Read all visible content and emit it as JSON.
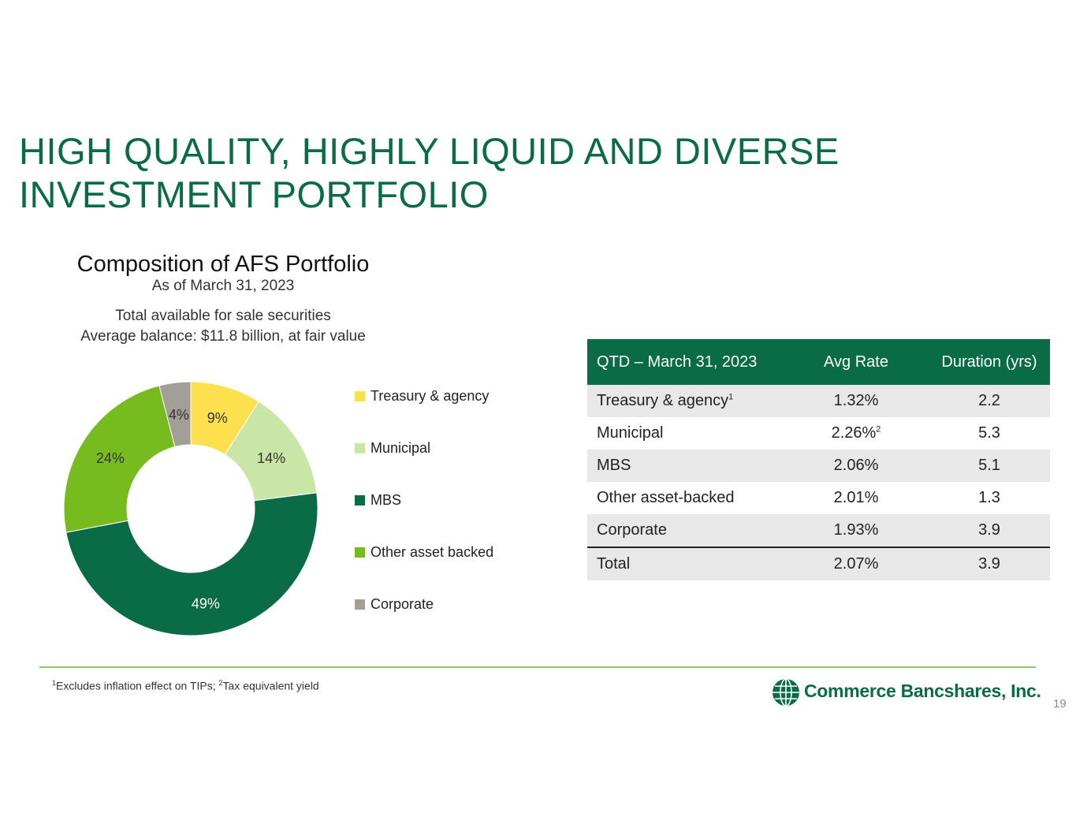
{
  "slide": {
    "title_line1": "HIGH QUALITY, HIGHLY LIQUID AND DIVERSE",
    "title_line2": "INVESTMENT PORTFOLIO",
    "page_number": "19"
  },
  "chart_header": {
    "title": "Composition of AFS Portfolio",
    "subtitle": "As of March 31, 2023",
    "note_line1": "Total available for sale securities",
    "note_line2": "Average balance: $11.8 billion, at fair value"
  },
  "chart_data": {
    "type": "pie",
    "donut": true,
    "categories": [
      "Treasury & agency",
      "Municipal",
      "MBS",
      "Other asset backed",
      "Corporate"
    ],
    "values": [
      9,
      14,
      49,
      24,
      4
    ],
    "labels": [
      "9%",
      "14%",
      "49%",
      "24%",
      "4%"
    ],
    "colors": [
      "#fde04e",
      "#c8e6a6",
      "#0a6b47",
      "#77bc1f",
      "#a39e96"
    ],
    "legend_position": "right"
  },
  "table": {
    "headers": [
      "QTD – March 31, 2023",
      "Avg Rate",
      "Duration (yrs)"
    ],
    "rows": [
      {
        "name": "Treasury & agency",
        "name_sup": "1",
        "rate": "1.32%",
        "rate_sup": "",
        "duration": "2.2"
      },
      {
        "name": "Municipal",
        "name_sup": "",
        "rate": "2.26%",
        "rate_sup": "2",
        "duration": "5.3"
      },
      {
        "name": "MBS",
        "name_sup": "",
        "rate": "2.06%",
        "rate_sup": "",
        "duration": "5.1"
      },
      {
        "name": "Other asset-backed",
        "name_sup": "",
        "rate": "2.01%",
        "rate_sup": "",
        "duration": "1.3"
      },
      {
        "name": "Corporate",
        "name_sup": "",
        "rate": "1.93%",
        "rate_sup": "",
        "duration": "3.9"
      },
      {
        "name": "Total",
        "name_sup": "",
        "rate": "2.07%",
        "rate_sup": "",
        "duration": "3.9"
      }
    ]
  },
  "footnote": {
    "sup1": "1",
    "text1": "Excludes inflation effect on TIPs; ",
    "sup2": "2",
    "text2": "Tax equivalent yield"
  },
  "logo": {
    "icon": "globe-icon",
    "text": "Commerce Bancshares, Inc."
  }
}
